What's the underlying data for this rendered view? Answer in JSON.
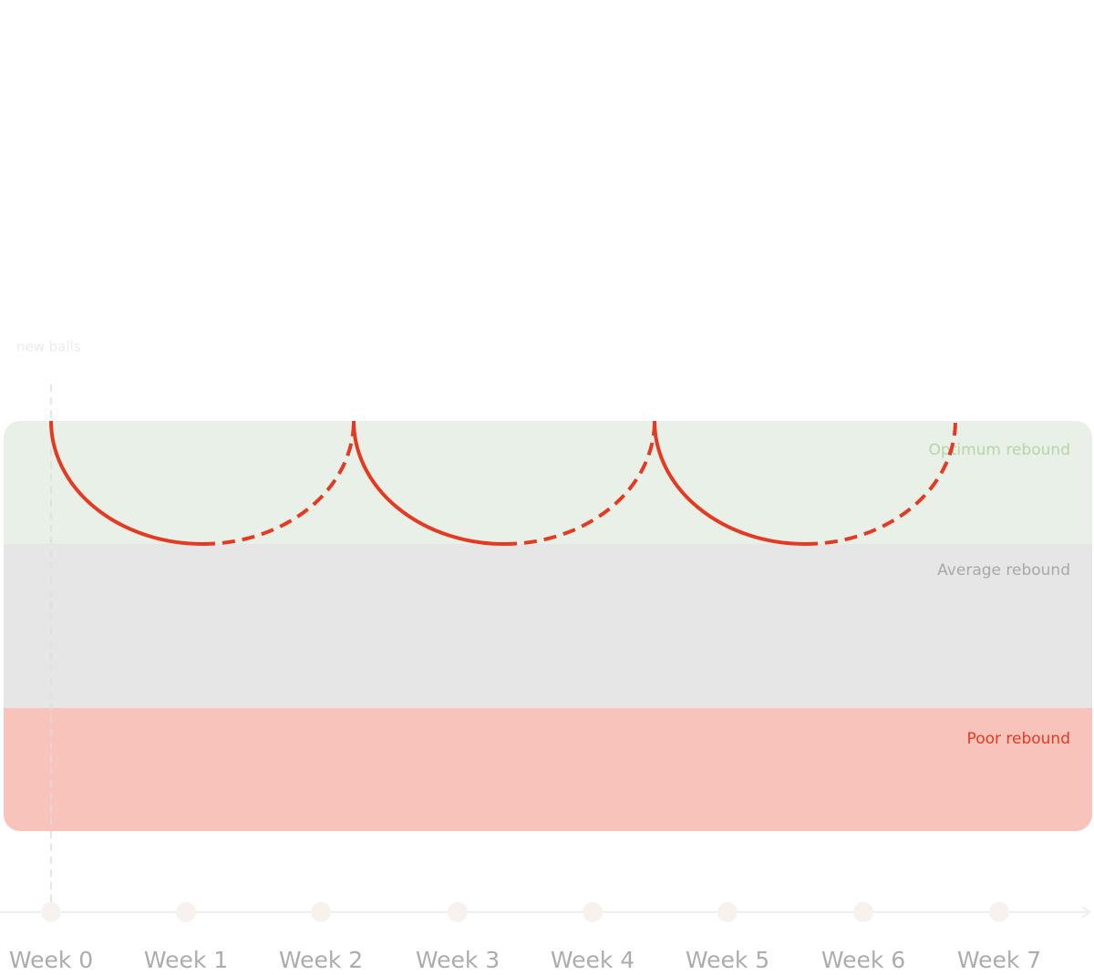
{
  "annotation": "new balls",
  "bands": [
    {
      "label": "Optimum rebound"
    },
    {
      "label": "Average rebound"
    },
    {
      "label": "Poor rebound"
    }
  ],
  "weeks": [
    "Week 0",
    "Week 1",
    "Week 2",
    "Week 3",
    "Week 4",
    "Week 5",
    "Week 6",
    "Week 7"
  ]
}
